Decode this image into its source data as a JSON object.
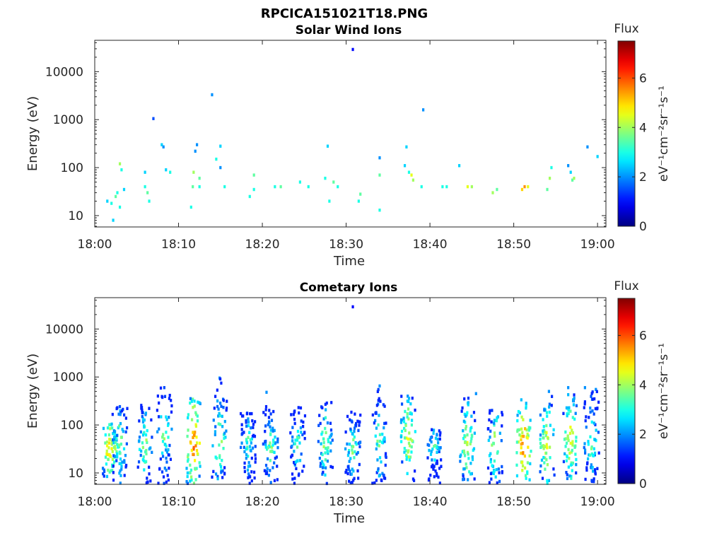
{
  "figure": {
    "title": "RPCICA151021T18.PNG"
  },
  "colorbar": {
    "title": "Flux",
    "unit_label": "eV⁻¹cm⁻²sr⁻¹s⁻¹",
    "ticks": [
      0,
      2,
      4,
      6
    ],
    "range": [
      0,
      7.5
    ],
    "colormap": "jet",
    "colors": [
      "#00008f",
      "#0000ff",
      "#00ffff",
      "#ffff00",
      "#ff0000",
      "#800000"
    ]
  },
  "chart_data": [
    {
      "type": "heatmap",
      "title": "Solar Wind Ions",
      "xlabel": "Time",
      "ylabel": "Energy (eV)",
      "x_ticks": [
        "18:00",
        "18:10",
        "18:20",
        "18:30",
        "18:40",
        "18:50",
        "19:00"
      ],
      "y_ticks": [
        10,
        100,
        1000,
        10000
      ],
      "y_scale": "log",
      "ylim": [
        5.8,
        45000
      ],
      "x_range_min": [
        0,
        61
      ],
      "points": [
        [
          1.5,
          20,
          2.5
        ],
        [
          2.0,
          18,
          3.0
        ],
        [
          2.2,
          8,
          2.5
        ],
        [
          2.5,
          25,
          3.5
        ],
        [
          2.7,
          30,
          3.0
        ],
        [
          3.0,
          15,
          3.0
        ],
        [
          3.0,
          120,
          4.0
        ],
        [
          3.2,
          90,
          3.0
        ],
        [
          3.5,
          35,
          2.5
        ],
        [
          6.0,
          40,
          3.0
        ],
        [
          6.0,
          80,
          2.5
        ],
        [
          6.3,
          30,
          3.5
        ],
        [
          6.5,
          20,
          3.0
        ],
        [
          7.0,
          1050,
          1.5
        ],
        [
          8.0,
          300,
          2.5
        ],
        [
          8.2,
          270,
          2.0
        ],
        [
          8.5,
          90,
          2.5
        ],
        [
          9.0,
          80,
          3.0
        ],
        [
          11.5,
          15,
          3.0
        ],
        [
          11.7,
          40,
          3.5
        ],
        [
          11.8,
          80,
          4.0
        ],
        [
          12.0,
          220,
          2.0
        ],
        [
          12.2,
          300,
          2.0
        ],
        [
          12.5,
          40,
          3.0
        ],
        [
          12.5,
          60,
          3.5
        ],
        [
          14.0,
          3300,
          2.0
        ],
        [
          14.5,
          150,
          3.0
        ],
        [
          15.0,
          100,
          2.0
        ],
        [
          15.0,
          280,
          2.5
        ],
        [
          15.5,
          40,
          3.0
        ],
        [
          18.5,
          25,
          3.0
        ],
        [
          19.0,
          35,
          3.0
        ],
        [
          19.0,
          70,
          3.5
        ],
        [
          21.5,
          40,
          3.0
        ],
        [
          22.2,
          40,
          3.5
        ],
        [
          24.5,
          50,
          3.0
        ],
        [
          25.5,
          40,
          3.0
        ],
        [
          27.5,
          60,
          3.0
        ],
        [
          27.8,
          280,
          2.5
        ],
        [
          28.0,
          20,
          3.0
        ],
        [
          28.5,
          50,
          3.5
        ],
        [
          29.0,
          40,
          3.0
        ],
        [
          30.8,
          29000,
          1.0
        ],
        [
          31.5,
          20,
          3.0
        ],
        [
          31.7,
          28,
          3.5
        ],
        [
          34.0,
          160,
          2.0
        ],
        [
          34.0,
          70,
          3.5
        ],
        [
          34.0,
          13,
          3.0
        ],
        [
          37.0,
          110,
          2.5
        ],
        [
          37.2,
          270,
          2.5
        ],
        [
          37.5,
          80,
          3.0
        ],
        [
          37.8,
          70,
          4.5
        ],
        [
          38.0,
          55,
          4.0
        ],
        [
          39.2,
          1600,
          2.0
        ],
        [
          39.0,
          40,
          3.0
        ],
        [
          41.5,
          40,
          3.0
        ],
        [
          42.0,
          40,
          3.0
        ],
        [
          43.5,
          110,
          2.5
        ],
        [
          44.5,
          40,
          4.5
        ],
        [
          45.0,
          40,
          4.0
        ],
        [
          47.5,
          30,
          4.0
        ],
        [
          48.0,
          35,
          3.5
        ],
        [
          51.0,
          35,
          5.0
        ],
        [
          51.3,
          40,
          5.5
        ],
        [
          51.7,
          40,
          4.5
        ],
        [
          54.0,
          35,
          3.5
        ],
        [
          54.3,
          60,
          4.0
        ],
        [
          54.5,
          100,
          3.0
        ],
        [
          56.5,
          110,
          2.0
        ],
        [
          56.8,
          80,
          2.5
        ],
        [
          57.0,
          55,
          3.5
        ],
        [
          57.2,
          60,
          4.0
        ],
        [
          58.8,
          270,
          2.0
        ],
        [
          60.0,
          170,
          2.5
        ]
      ]
    },
    {
      "type": "heatmap",
      "title": "Cometary Ions",
      "xlabel": "Time",
      "ylabel": "Energy (eV)",
      "x_ticks": [
        "18:00",
        "18:10",
        "18:20",
        "18:30",
        "18:40",
        "18:50",
        "19:00"
      ],
      "y_ticks": [
        10,
        100,
        1000,
        10000
      ],
      "y_scale": "log",
      "ylim": [
        5.8,
        45000
      ],
      "x_range_min": [
        0,
        61
      ],
      "bursts": [
        {
          "t": 1.8,
          "peak_e": 30,
          "top_e": 110,
          "peak": 6.0
        },
        {
          "t": 3.0,
          "peak_e": 45,
          "top_e": 250,
          "peak": 4.8
        },
        {
          "t": 6.0,
          "peak_e": 40,
          "top_e": 260,
          "peak": 4.8
        },
        {
          "t": 8.3,
          "peak_e": 70,
          "top_e": 600,
          "peak": 4.5
        },
        {
          "t": 11.8,
          "peak_e": 40,
          "top_e": 400,
          "peak": 6.5
        },
        {
          "t": 14.9,
          "peak_e": 45,
          "top_e": 950,
          "peak": 4.8
        },
        {
          "t": 18.3,
          "peak_e": 40,
          "top_e": 200,
          "peak": 4.2
        },
        {
          "t": 21.0,
          "peak_e": 35,
          "top_e": 250,
          "peak": 4.5
        },
        {
          "t": 24.2,
          "peak_e": 40,
          "top_e": 250,
          "peak": 4.3
        },
        {
          "t": 27.5,
          "peak_e": 45,
          "top_e": 300,
          "peak": 4.8
        },
        {
          "t": 30.8,
          "peak_e": 35,
          "top_e": 200,
          "peak": 4.5
        },
        {
          "t": 34.0,
          "peak_e": 45,
          "top_e": 650,
          "peak": 4.5
        },
        {
          "t": 37.4,
          "peak_e": 55,
          "top_e": 420,
          "peak": 5.5
        },
        {
          "t": 40.5,
          "peak_e": 35,
          "top_e": 80,
          "peak": 4.2
        },
        {
          "t": 44.5,
          "peak_e": 40,
          "top_e": 400,
          "peak": 5.3
        },
        {
          "t": 47.8,
          "peak_e": 35,
          "top_e": 350,
          "peak": 5.0
        },
        {
          "t": 51.2,
          "peak_e": 38,
          "top_e": 350,
          "peak": 6.5
        },
        {
          "t": 54.0,
          "peak_e": 40,
          "top_e": 450,
          "peak": 5.5
        },
        {
          "t": 56.8,
          "peak_e": 50,
          "top_e": 500,
          "peak": 5.5
        },
        {
          "t": 59.3,
          "peak_e": 45,
          "top_e": 500,
          "peak": 4.5
        }
      ],
      "points": [
        [
          30.8,
          29000,
          1.0
        ],
        [
          14.9,
          950,
          2.0
        ],
        [
          34.0,
          650,
          2.0
        ],
        [
          8.3,
          600,
          1.5
        ],
        [
          20.5,
          480,
          2.0
        ],
        [
          45.5,
          450,
          2.0
        ],
        [
          54.2,
          500,
          2.0
        ],
        [
          56.5,
          600,
          2.0
        ],
        [
          58.5,
          600,
          2.0
        ],
        [
          59.8,
          550,
          2.0
        ]
      ]
    }
  ]
}
